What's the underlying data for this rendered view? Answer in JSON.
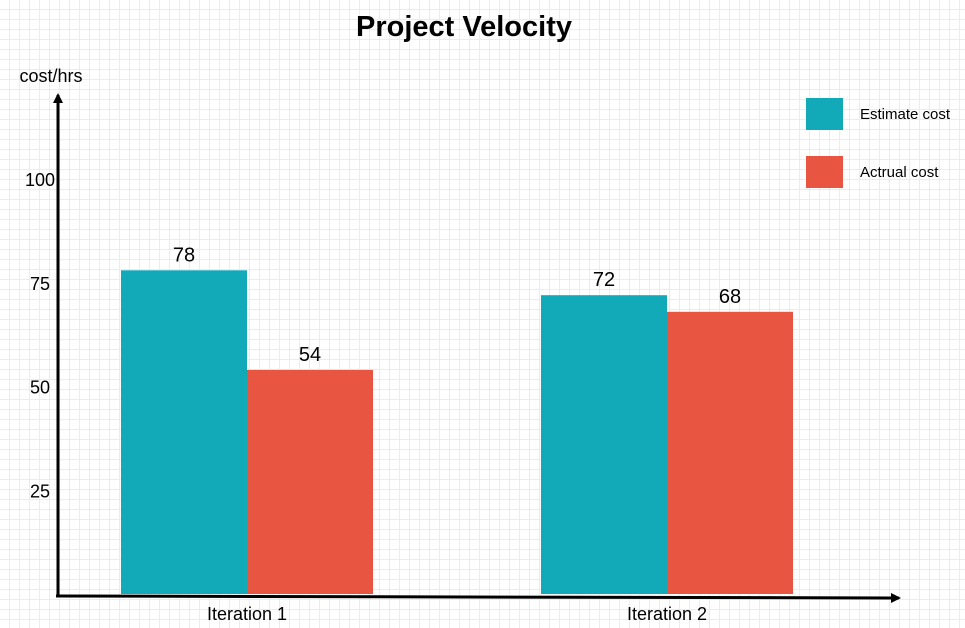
{
  "chart_data": {
    "type": "bar",
    "title": "Project Velocity",
    "ylabel": "cost/hrs",
    "xlabel": "",
    "categories": [
      "Iteration 1",
      "Iteration 2"
    ],
    "series": [
      {
        "name": "Estimate cost",
        "values": [
          78,
          72
        ],
        "color": "#12A9B8"
      },
      {
        "name": "Actrual cost",
        "values": [
          54,
          68
        ],
        "color": "#E85642"
      }
    ],
    "yticks": [
      25,
      50,
      75,
      100
    ],
    "ylim": [
      0,
      125
    ],
    "grid": true,
    "legend_position": "top-right"
  }
}
